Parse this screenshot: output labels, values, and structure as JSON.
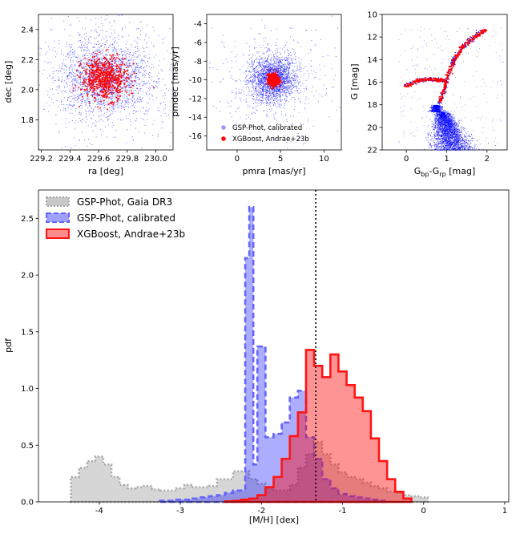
{
  "chart_data": [
    {
      "type": "scatter",
      "panel": "sky-position",
      "xlabel": "ra [deg]",
      "ylabel": "dec [deg]",
      "xlim": [
        229.18,
        230.12
      ],
      "ylim": [
        1.6,
        2.5
      ],
      "xticks": [
        "229.2",
        "229.4",
        "229.6",
        "229.8",
        "230.0"
      ],
      "yticks": [
        "1.8",
        "2.0",
        "2.2",
        "2.4"
      ],
      "series": [
        {
          "name": "GSP-Phot, calibrated",
          "color": "#0000ff",
          "center": [
            229.64,
            2.08
          ],
          "spread": [
            0.15,
            0.12
          ]
        },
        {
          "name": "XGBoost, Andrae+23b",
          "color": "#ff0000",
          "center": [
            229.64,
            2.08
          ],
          "spread": [
            0.08,
            0.07
          ]
        }
      ]
    },
    {
      "type": "scatter",
      "panel": "proper-motion",
      "xlabel": "pmra [mas/yr]",
      "ylabel": "pmdec [mas/yr]",
      "xlim": [
        -3.5,
        12.0
      ],
      "ylim": [
        -17.5,
        -3.0
      ],
      "xticks": [
        "0",
        "5",
        "10"
      ],
      "yticks": [
        "-4",
        "-6",
        "-8",
        "-10",
        "-12",
        "-14",
        "-16"
      ],
      "legend": {
        "position": "lower-right",
        "entries": [
          {
            "label": "GSP-Phot, calibrated",
            "color": "#9999ff"
          },
          {
            "label": "XGBoost, Andrae+23b",
            "color": "#ff0000"
          }
        ]
      },
      "series": [
        {
          "name": "GSP-Phot, calibrated",
          "color": "#0000ff",
          "center": [
            4.1,
            -9.9
          ],
          "spread": [
            1.3,
            1.2
          ]
        },
        {
          "name": "XGBoost, Andrae+23b",
          "color": "#ff0000",
          "center": [
            4.1,
            -9.9
          ],
          "spread": [
            0.3,
            0.3
          ]
        }
      ]
    },
    {
      "type": "scatter",
      "panel": "color-magnitude",
      "xlabel": "G_bp-G_rp [mag]",
      "xlabel_parts": {
        "a": "G",
        "a_sub": "bp",
        "sep": "-G",
        "b_sub": "rp",
        "unit": " [mag]"
      },
      "ylabel": "G [mag]",
      "xlim": [
        -0.6,
        2.5
      ],
      "ylim": [
        22,
        10
      ],
      "xticks": [
        "0",
        "1",
        "2"
      ],
      "yticks": [
        "10",
        "12",
        "14",
        "16",
        "18",
        "20",
        "22"
      ],
      "features": {
        "horizontal_branch": [
          [
            -0.05,
            16.3
          ],
          [
            0.2,
            15.9
          ],
          [
            0.4,
            15.75
          ],
          [
            0.6,
            15.7
          ],
          [
            0.8,
            15.75
          ],
          [
            0.95,
            15.8
          ]
        ],
        "red_giant_branch": [
          [
            0.8,
            17.8
          ],
          [
            0.9,
            16.9
          ],
          [
            1.0,
            15.6
          ],
          [
            1.1,
            14.5
          ],
          [
            1.2,
            13.8
          ],
          [
            1.35,
            13.0
          ],
          [
            1.55,
            12.3
          ],
          [
            1.75,
            11.8
          ],
          [
            1.95,
            11.3
          ]
        ],
        "main_sequence_turnoff": [
          0.75,
          18.2
        ],
        "main_sequence_bottom": [
          1.1,
          21.5
        ]
      }
    },
    {
      "type": "histogram",
      "panel": "metallicity",
      "xlabel": "[M/H] [dex]",
      "ylabel": "pdf",
      "xlim": [
        -4.75,
        1.05
      ],
      "ylim": [
        0,
        2.75
      ],
      "xticks": [
        "-4",
        "-3",
        "-2",
        "-1",
        "0",
        "1"
      ],
      "yticks": [
        "0.0",
        "0.5",
        "1.0",
        "1.5",
        "2.0",
        "2.5"
      ],
      "vline": -1.33,
      "legend": {
        "position": "top-left",
        "entries": [
          {
            "label": "GSP-Phot, Gaia DR3",
            "color": "#c8c8c8"
          },
          {
            "label": "GSP-Phot, calibrated",
            "color": "#7878ff"
          },
          {
            "label": "XGBoost, Andrae+23b",
            "color": "#ff6e6e"
          }
        ]
      },
      "series": [
        {
          "name": "GSP-Phot, Gaia DR3",
          "style": "dotted",
          "color": "#aaaaaa",
          "edges": [
            -4.35,
            -4.25,
            -4.15,
            -4.05,
            -3.95,
            -3.85,
            -3.75,
            -3.65,
            -3.55,
            -3.45,
            -3.35,
            -3.25,
            -3.15,
            -3.05,
            -2.95,
            -2.85,
            -2.75,
            -2.65,
            -2.55,
            -2.45,
            -2.35,
            -2.25,
            -2.15,
            -2.05,
            -1.95,
            -1.85,
            -1.75,
            -1.65,
            -1.55,
            -1.45,
            -1.35,
            -1.25,
            -1.15,
            -1.05,
            -0.95,
            -0.85,
            -0.75,
            -0.65,
            -0.55,
            -0.45,
            -0.35,
            -0.25,
            -0.15,
            -0.05,
            0.05
          ],
          "values": [
            0.22,
            0.3,
            0.36,
            0.4,
            0.33,
            0.22,
            0.15,
            0.12,
            0.13,
            0.14,
            0.11,
            0.1,
            0.1,
            0.12,
            0.15,
            0.13,
            0.13,
            0.14,
            0.2,
            0.2,
            0.27,
            0.27,
            0.2,
            0.16,
            0.12,
            0.1,
            0.1,
            0.15,
            0.3,
            0.42,
            0.53,
            0.42,
            0.33,
            0.26,
            0.22,
            0.2,
            0.17,
            0.14,
            0.12,
            0.09,
            0.08,
            0.06,
            0.05,
            0.04
          ]
        },
        {
          "name": "GSP-Phot, calibrated",
          "style": "dashed",
          "color": "#6464ff",
          "edges": [
            -3.25,
            -3.15,
            -3.05,
            -2.95,
            -2.85,
            -2.75,
            -2.65,
            -2.55,
            -2.45,
            -2.35,
            -2.25,
            -2.2,
            -2.15,
            -2.1,
            -2.05,
            -1.95,
            -1.85,
            -1.75,
            -1.65,
            -1.55,
            -1.45,
            -1.35,
            -1.25,
            -1.15,
            -1.05,
            -0.95,
            -0.85,
            -0.75,
            -0.65,
            -0.55,
            -0.45
          ],
          "values": [
            0.01,
            0.01,
            0.02,
            0.02,
            0.03,
            0.04,
            0.05,
            0.06,
            0.08,
            0.1,
            0.1,
            2.15,
            2.6,
            0.33,
            1.37,
            0.57,
            0.6,
            0.7,
            0.92,
            0.98,
            0.57,
            0.38,
            0.2,
            0.12,
            0.07,
            0.05,
            0.04,
            0.03,
            0.02,
            0.01
          ]
        },
        {
          "name": "XGBoost, Andrae+23b",
          "style": "solid",
          "color": "#ff1414",
          "edges": [
            -2.45,
            -2.35,
            -2.25,
            -2.15,
            -2.05,
            -1.95,
            -1.85,
            -1.75,
            -1.65,
            -1.55,
            -1.45,
            -1.35,
            -1.25,
            -1.15,
            -1.05,
            -0.95,
            -0.85,
            -0.75,
            -0.65,
            -0.55,
            -0.45,
            -0.35,
            -0.25,
            -0.15
          ],
          "values": [
            0.005,
            0.01,
            0.02,
            0.03,
            0.06,
            0.13,
            0.22,
            0.38,
            0.58,
            0.79,
            1.34,
            1.2,
            1.1,
            1.3,
            1.15,
            1.03,
            0.92,
            0.8,
            0.56,
            0.36,
            0.2,
            0.09,
            0.03
          ]
        }
      ]
    }
  ]
}
